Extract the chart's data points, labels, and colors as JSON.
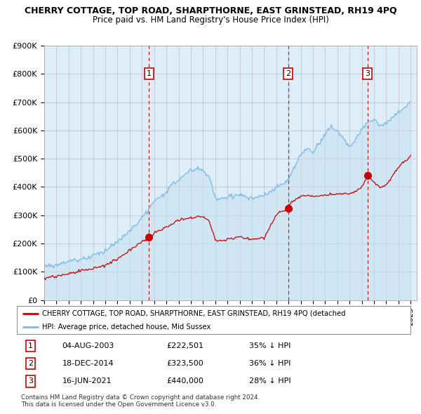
{
  "title": "CHERRY COTTAGE, TOP ROAD, SHARPTHORNE, EAST GRINSTEAD, RH19 4PQ",
  "subtitle": "Price paid vs. HM Land Registry's House Price Index (HPI)",
  "ylim": [
    0,
    900000
  ],
  "yticks": [
    0,
    100000,
    200000,
    300000,
    400000,
    500000,
    600000,
    700000,
    800000,
    900000
  ],
  "ytick_labels": [
    "£0",
    "£100K",
    "£200K",
    "£300K",
    "£400K",
    "£500K",
    "£600K",
    "£700K",
    "£800K",
    "£900K"
  ],
  "xlim_start": 1995.0,
  "xlim_end": 2025.5,
  "sale_dates": [
    2003.587,
    2014.962,
    2021.457
  ],
  "sale_prices": [
    222501,
    323500,
    440000
  ],
  "sale_labels": [
    "1",
    "2",
    "3"
  ],
  "hpi_color": "#7ab8e8",
  "hpi_fill_color": "#d8eaf8",
  "property_color": "#cc0000",
  "vline_color": "#cc0000",
  "background_color": "#ffffff",
  "chart_bg_color": "#ddeeff",
  "grid_color": "#cccccc",
  "legend_label_red": "CHERRY COTTAGE, TOP ROAD, SHARPTHORNE, EAST GRINSTEAD, RH19 4PQ (detached",
  "legend_label_blue": "HPI: Average price, detached house, Mid Sussex",
  "table_rows": [
    [
      "1",
      "04-AUG-2003",
      "£222,501",
      "35% ↓ HPI"
    ],
    [
      "2",
      "18-DEC-2014",
      "£323,500",
      "36% ↓ HPI"
    ],
    [
      "3",
      "16-JUN-2021",
      "£440,000",
      "28% ↓ HPI"
    ]
  ],
  "footnote": "Contains HM Land Registry data © Crown copyright and database right 2024.\nThis data is licensed under the Open Government Licence v3.0."
}
